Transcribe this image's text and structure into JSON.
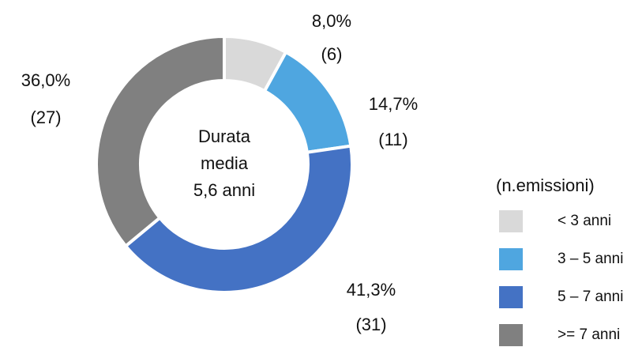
{
  "chart_data": {
    "type": "pie",
    "categories": [
      "<  3 anni",
      "3 – 5 anni",
      "5 – 7 anni",
      ">= 7 anni"
    ],
    "values": [
      8.0,
      14.7,
      41.3,
      36.0
    ],
    "value_labels": [
      "8,0%",
      "14,7%",
      "41,3%",
      "36,0%"
    ],
    "count_labels": [
      "(6)",
      "(11)",
      "(31)",
      "(27)"
    ],
    "colors": [
      "#d9d9d9",
      "#4fa6e0",
      "#4472c4",
      "#808080"
    ],
    "center_text": [
      "Durata",
      "media",
      "5,6 anni"
    ],
    "legend_title": "(n.emissioni)",
    "legend": "right"
  }
}
